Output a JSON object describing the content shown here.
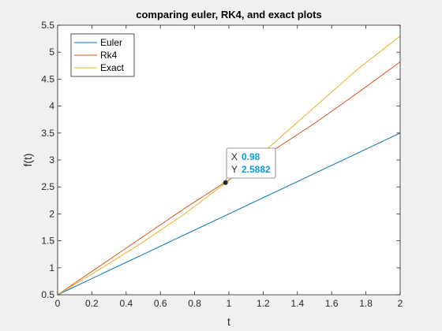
{
  "chart_data": {
    "type": "line",
    "title": "comparing euler, RK4, and exact plots",
    "xlabel": "t",
    "ylabel": "f(t)",
    "xlim": [
      0,
      2
    ],
    "ylim": [
      0.5,
      5.5
    ],
    "xticks": [
      0,
      0.2,
      0.4,
      0.6,
      0.8,
      1,
      1.2,
      1.4,
      1.6,
      1.8,
      2
    ],
    "xtick_labels": [
      "0",
      "0.2",
      "0.4",
      "0.6",
      "0.8",
      "1",
      "1.2",
      "1.4",
      "1.6",
      "1.8",
      "2"
    ],
    "yticks": [
      0.5,
      1,
      1.5,
      2,
      2.5,
      3,
      3.5,
      4,
      4.5,
      5,
      5.5
    ],
    "ytick_labels": [
      "0.5",
      "1",
      "1.5",
      "2",
      "2.5",
      "3",
      "3.5",
      "4",
      "4.5",
      "5",
      "5.5"
    ],
    "grid": false,
    "legend_position": "top-left",
    "series": [
      {
        "name": "Euler",
        "color": "#0072bd",
        "x": [
          0,
          0.5,
          1,
          1.5,
          2
        ],
        "y": [
          0.5,
          1.25,
          2.0,
          2.75,
          3.5
        ]
      },
      {
        "name": "Rk4",
        "color": "#d95319",
        "x": [
          0,
          0.25,
          0.5,
          0.75,
          1,
          1.25,
          1.5,
          1.75,
          2
        ],
        "y": [
          0.5,
          1.04,
          1.58,
          2.12,
          2.63,
          3.16,
          3.68,
          4.24,
          4.82
        ]
      },
      {
        "name": "Exact",
        "color": "#edb120",
        "x": [
          0,
          0.25,
          0.5,
          0.75,
          1,
          1.25,
          1.5,
          1.75,
          2
        ],
        "y": [
          0.5,
          0.98,
          1.48,
          2.02,
          2.62,
          3.28,
          3.98,
          4.68,
          5.3
        ]
      }
    ],
    "datatip": {
      "x": 0.98,
      "y": 2.58,
      "x_label": "X",
      "y_label": "Y",
      "x_text": "0.98",
      "y_text": "2.5882"
    }
  }
}
